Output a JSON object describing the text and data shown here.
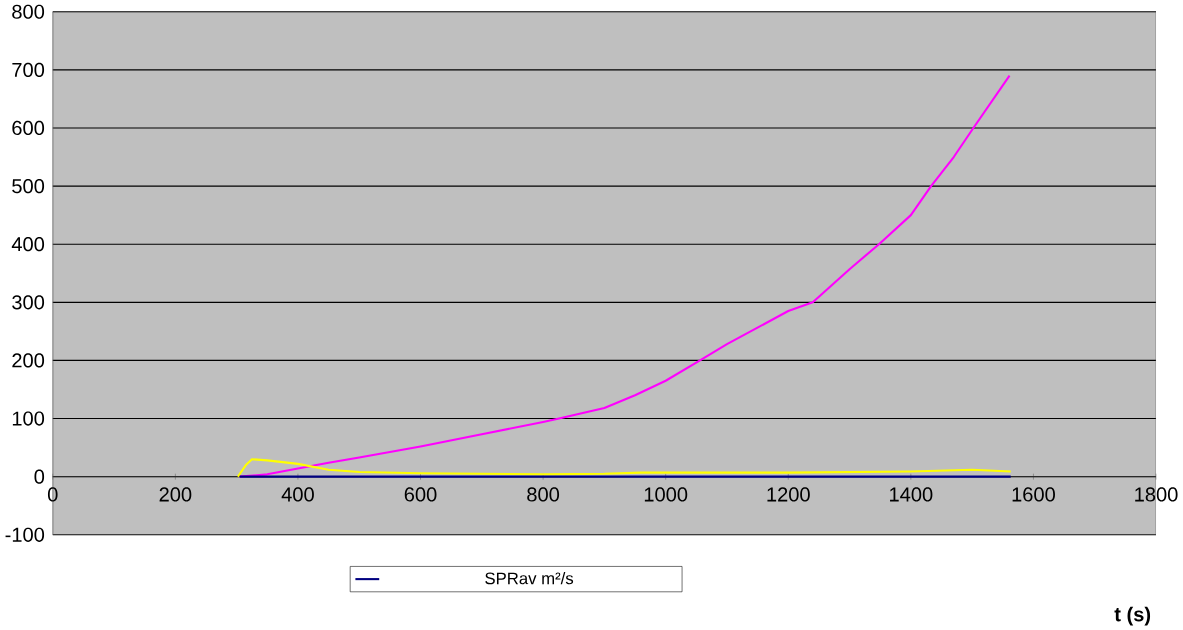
{
  "chart_data": {
    "type": "line",
    "xlabel": "t (s)",
    "xlim": [
      0,
      1800
    ],
    "xticks": [
      0,
      200,
      400,
      600,
      800,
      1000,
      1200,
      1400,
      1600,
      1800
    ],
    "ylim": [
      -100,
      800
    ],
    "yticks": [
      -100,
      0,
      100,
      200,
      300,
      400,
      500,
      600,
      700,
      800
    ],
    "grid": "y",
    "legend": "bottom",
    "marker": "none",
    "line_style": "solid",
    "series": [
      {
        "color": "#ff00ff",
        "x": [
          305,
          350,
          400,
          450,
          500,
          600,
          700,
          800,
          826,
          900,
          950,
          1000,
          1056,
          1100,
          1200,
          1240,
          1300,
          1348,
          1400,
          1433,
          1470,
          1502,
          1561
        ],
        "values": [
          0,
          4,
          14,
          24,
          33,
          52,
          73,
          94,
          100,
          118,
          140,
          165,
          200,
          228,
          285,
          300,
          357,
          400,
          450,
          500,
          550,
          600,
          690
        ]
      },
      {
        "color": "#ffff00",
        "x": [
          302,
          315,
          325,
          350,
          400,
          450,
          500,
          600,
          700,
          800,
          900,
          960,
          1100,
          1200,
          1300,
          1400,
          1500,
          1563
        ],
        "values": [
          0,
          20,
          30,
          28,
          22,
          12,
          8,
          6,
          5,
          4,
          5,
          7,
          7,
          7,
          8,
          9,
          12,
          9
        ]
      },
      {
        "name": "SPRav m²/s",
        "color": "#000080",
        "x": [
          305,
          600,
          900,
          1200,
          1563
        ],
        "values": [
          0,
          0,
          0,
          0,
          0
        ]
      }
    ]
  }
}
